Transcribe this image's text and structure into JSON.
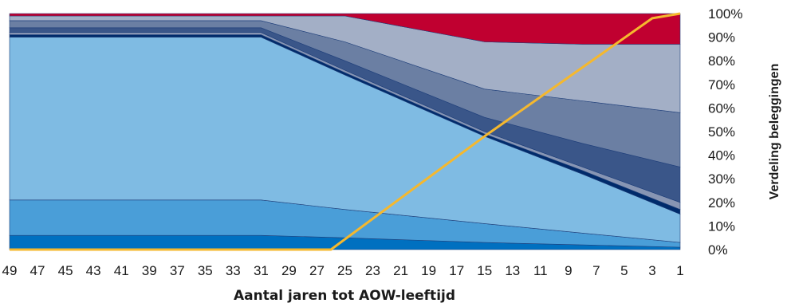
{
  "chart_data": {
    "type": "area",
    "stacked": true,
    "xlabel": "Aantal jaren tot AOW-leeftijd",
    "ylabel": "Verdeling beleggingen",
    "x_tick_labels": [
      "49",
      "47",
      "45",
      "43",
      "41",
      "39",
      "37",
      "35",
      "33",
      "31",
      "29",
      "27",
      "25",
      "23",
      "21",
      "19",
      "17",
      "15",
      "13",
      "11",
      "9",
      "7",
      "5",
      "3",
      "1"
    ],
    "y_tick_labels": [
      "0%",
      "10%",
      "20%",
      "30%",
      "40%",
      "50%",
      "60%",
      "70%",
      "80%",
      "90%",
      "100%"
    ],
    "ylim": [
      0,
      100
    ],
    "x_direction": "descending",
    "grid": false,
    "legend": "none",
    "x": [
      49,
      31,
      25,
      15,
      8,
      1
    ],
    "series": [
      {
        "color": "#0070c0",
        "values": [
          6,
          6,
          5,
          3,
          2,
          1
        ]
      },
      {
        "color": "#4a9ed8",
        "values": [
          15,
          15,
          12,
          8,
          5,
          2
        ]
      },
      {
        "color": "#7fbbe3",
        "values": [
          69,
          69,
          57,
          37,
          25,
          12
        ]
      },
      {
        "color": "#002b6b",
        "values": [
          1,
          1,
          1,
          1,
          1.5,
          2
        ]
      },
      {
        "color": "#8795b3",
        "values": [
          1,
          1,
          1,
          1,
          1.5,
          3
        ]
      },
      {
        "color": "#3a5689",
        "values": [
          2,
          2,
          4,
          6,
          10,
          15
        ]
      },
      {
        "color": "#6b7fa3",
        "values": [
          3,
          3,
          8,
          12,
          18,
          23
        ]
      },
      {
        "color": "#a3afc6",
        "values": [
          2,
          2,
          11,
          20,
          24,
          29
        ]
      },
      {
        "color": "#c00030",
        "values": [
          1,
          1,
          1,
          12,
          13,
          13
        ]
      }
    ],
    "line_series": {
      "color": "#f5b82e",
      "x": [
        49,
        26,
        15,
        3,
        1
      ],
      "values": [
        0,
        0,
        48,
        98,
        100
      ]
    }
  }
}
